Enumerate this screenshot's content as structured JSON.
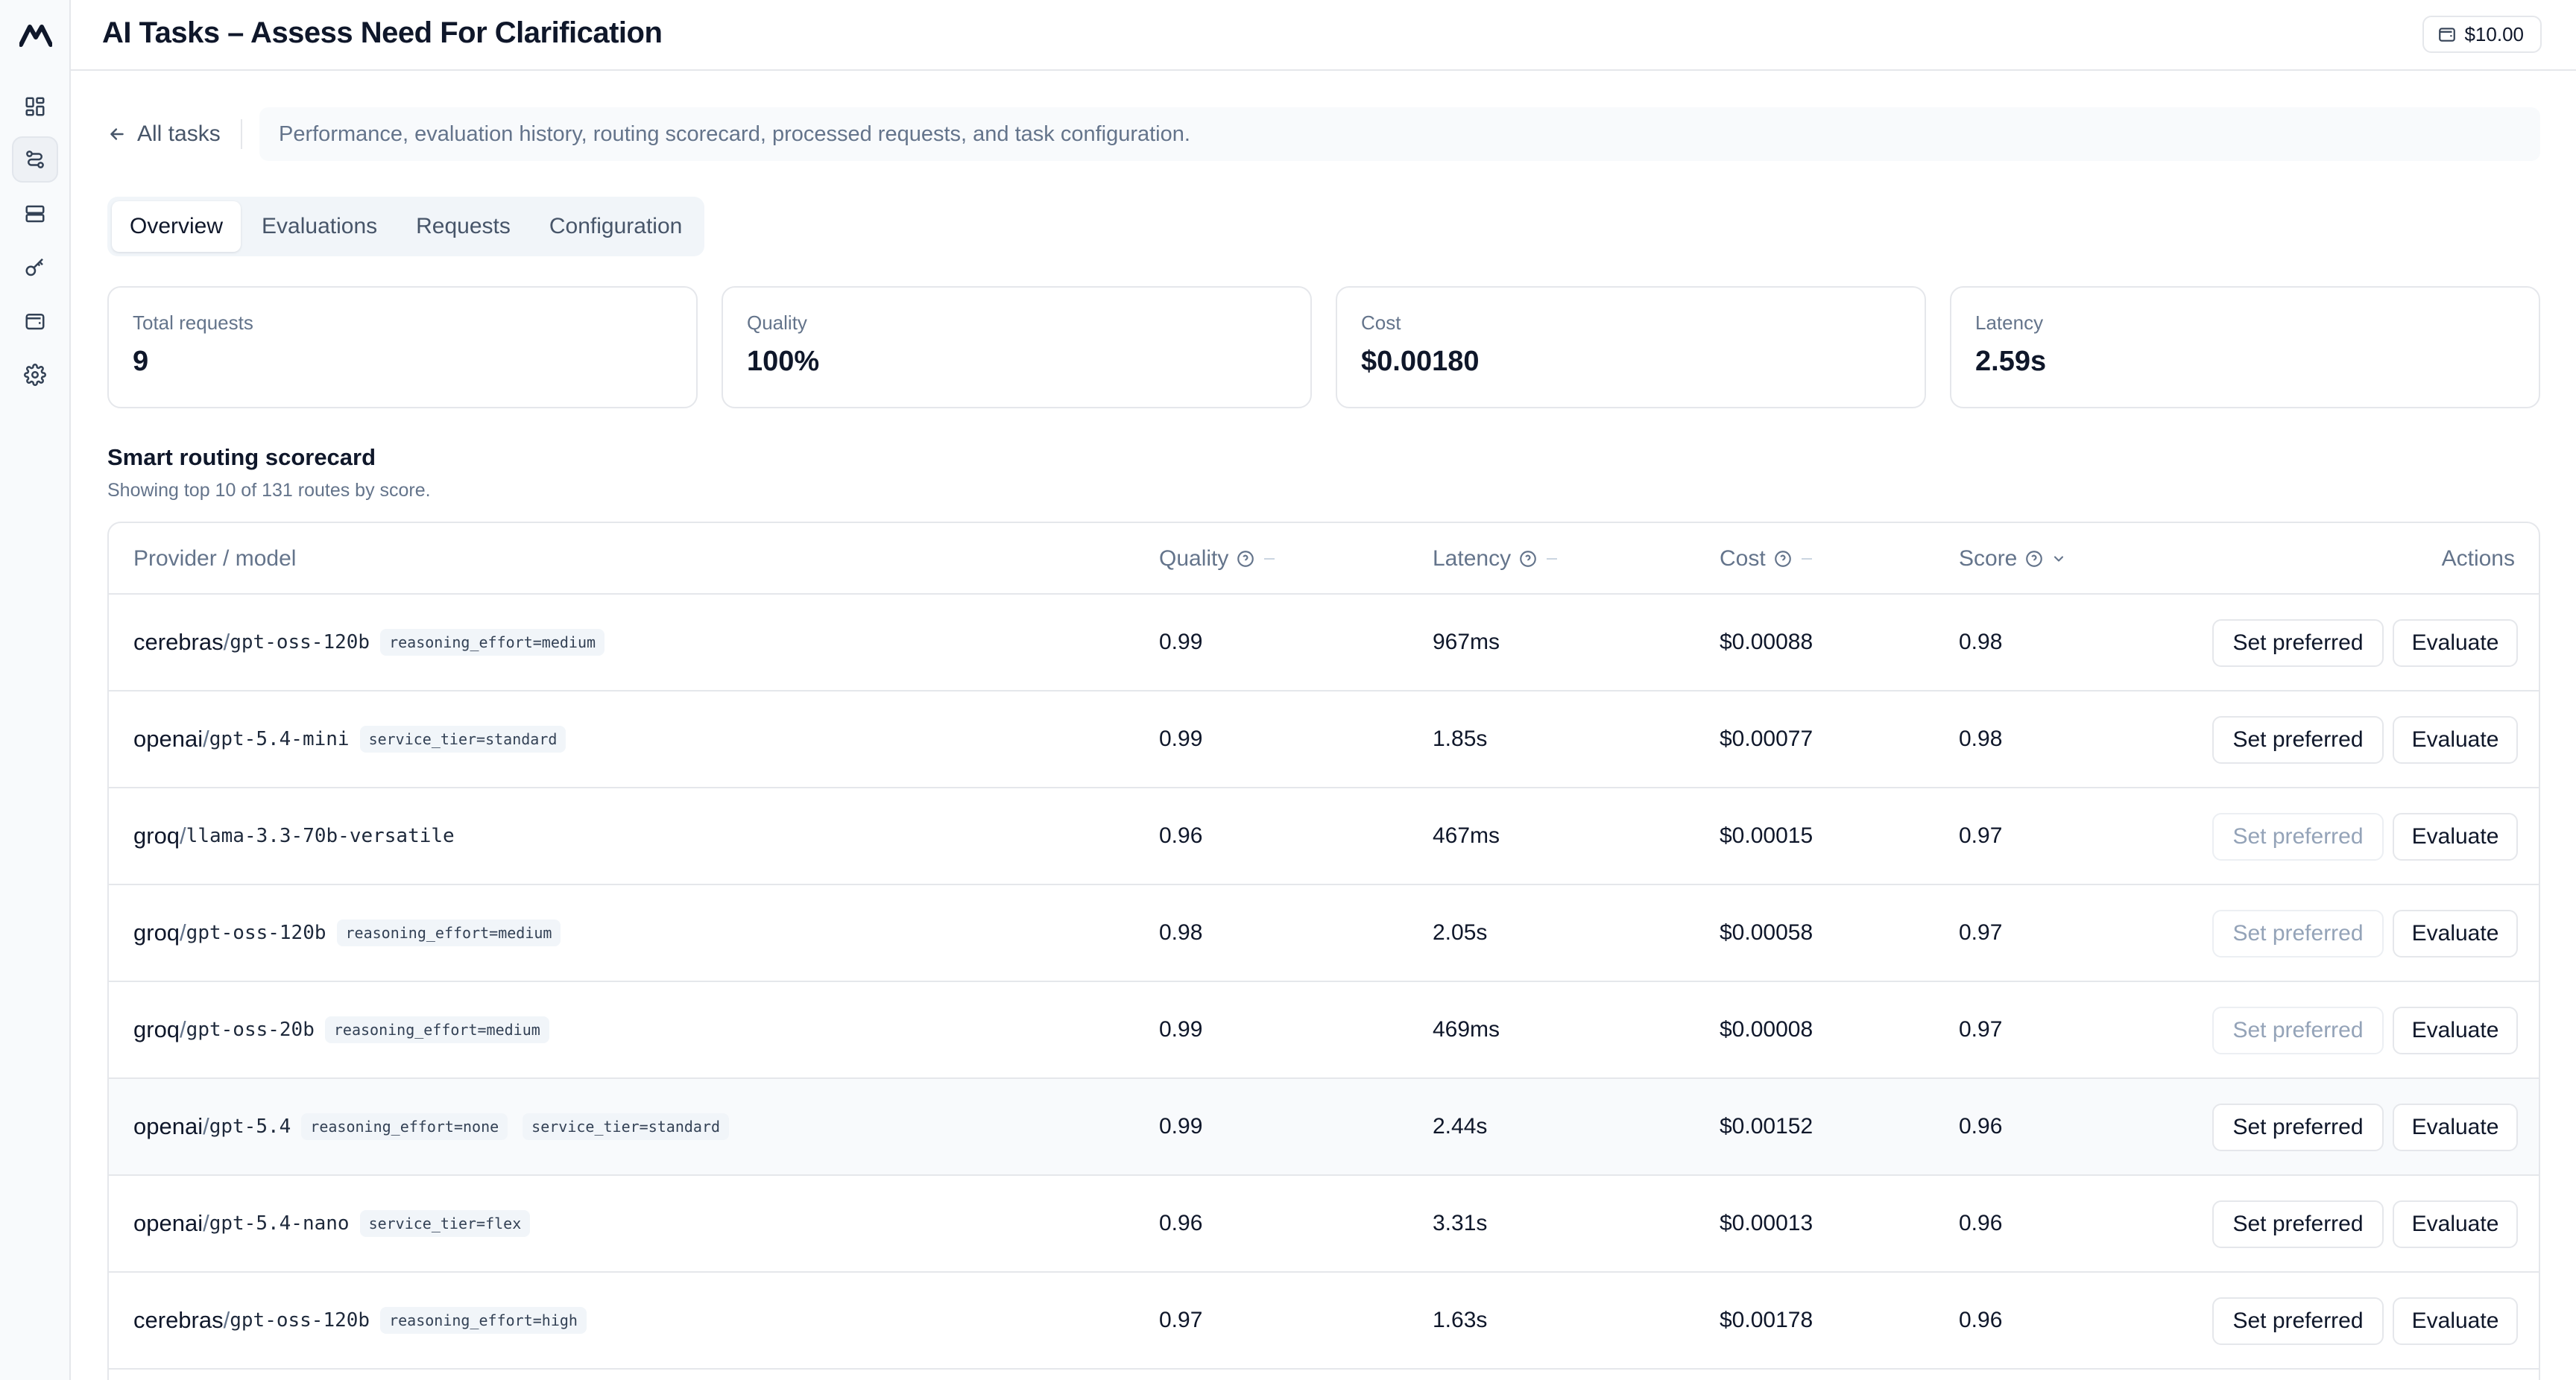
{
  "app": {
    "title": "AI Tasks – Assess Need For Clarification",
    "balance": "$10.00"
  },
  "nav": {
    "back_label": "All tasks",
    "description": "Performance, evaluation history, routing scorecard, processed requests, and task configuration.",
    "rail_icons": [
      "logo-icon",
      "dashboard-icon",
      "routing-icon",
      "storage-icon",
      "key-icon",
      "wallet-icon",
      "gear-icon"
    ]
  },
  "tabs": [
    {
      "label": "Overview",
      "active": true
    },
    {
      "label": "Evaluations",
      "active": false
    },
    {
      "label": "Requests",
      "active": false
    },
    {
      "label": "Configuration",
      "active": false
    }
  ],
  "stats": [
    {
      "label": "Total requests",
      "value": "9"
    },
    {
      "label": "Quality",
      "value": "100%"
    },
    {
      "label": "Cost",
      "value": "$0.00180"
    },
    {
      "label": "Latency",
      "value": "2.59s"
    }
  ],
  "scorecard": {
    "title": "Smart routing scorecard",
    "subtitle": "Showing top 10 of 131 routes by score.",
    "columns": {
      "model": "Provider / model",
      "quality": "Quality",
      "latency": "Latency",
      "cost": "Cost",
      "score": "Score",
      "actions": "Actions"
    },
    "set_preferred_label": "Set preferred",
    "evaluate_label": "Evaluate",
    "rows": [
      {
        "provider": "cerebras",
        "model": "gpt-oss-120b",
        "tags": [
          "reasoning_effort=medium"
        ],
        "quality": "0.99",
        "latency": "967ms",
        "cost": "$0.00088",
        "score": "0.98",
        "preferred_enabled": true
      },
      {
        "provider": "openai",
        "model": "gpt-5.4-mini",
        "tags": [
          "service_tier=standard"
        ],
        "quality": "0.99",
        "latency": "1.85s",
        "cost": "$0.00077",
        "score": "0.98",
        "preferred_enabled": true
      },
      {
        "provider": "groq",
        "model": "llama-3.3-70b-versatile",
        "tags": [],
        "quality": "0.96",
        "latency": "467ms",
        "cost": "$0.00015",
        "score": "0.97",
        "preferred_enabled": false
      },
      {
        "provider": "groq",
        "model": "gpt-oss-120b",
        "tags": [
          "reasoning_effort=medium"
        ],
        "quality": "0.98",
        "latency": "2.05s",
        "cost": "$0.00058",
        "score": "0.97",
        "preferred_enabled": false
      },
      {
        "provider": "groq",
        "model": "gpt-oss-20b",
        "tags": [
          "reasoning_effort=medium"
        ],
        "quality": "0.99",
        "latency": "469ms",
        "cost": "$0.00008",
        "score": "0.97",
        "preferred_enabled": false
      },
      {
        "provider": "openai",
        "model": "gpt-5.4",
        "tags": [
          "reasoning_effort=none",
          "service_tier=standard"
        ],
        "quality": "0.99",
        "latency": "2.44s",
        "cost": "$0.00152",
        "score": "0.96",
        "preferred_enabled": true,
        "highlighted": true
      },
      {
        "provider": "openai",
        "model": "gpt-5.4-nano",
        "tags": [
          "service_tier=flex"
        ],
        "quality": "0.96",
        "latency": "3.31s",
        "cost": "$0.00013",
        "score": "0.96",
        "preferred_enabled": true
      },
      {
        "provider": "cerebras",
        "model": "gpt-oss-120b",
        "tags": [
          "reasoning_effort=high"
        ],
        "quality": "0.97",
        "latency": "1.63s",
        "cost": "$0.00178",
        "score": "0.96",
        "preferred_enabled": true
      }
    ]
  }
}
